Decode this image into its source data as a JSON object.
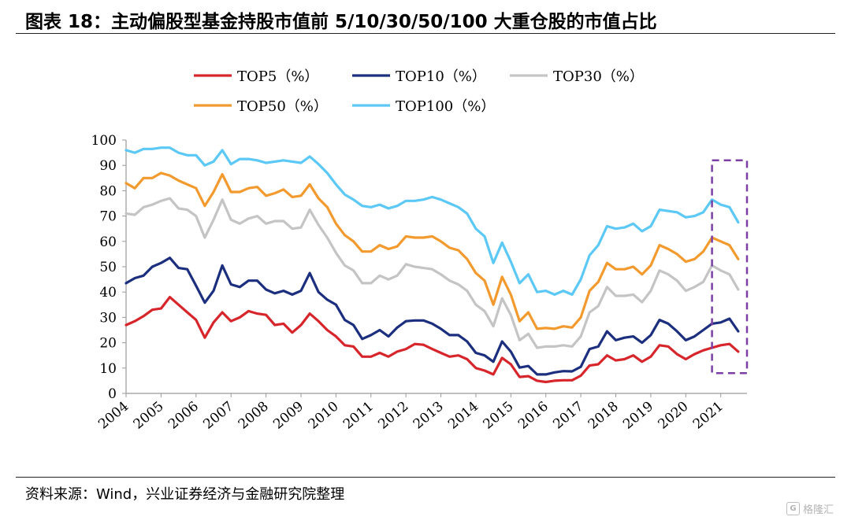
{
  "header": {
    "figure_title": "图表 18：主动偏股型基金持股市值前 5/10/30/50/100 大重仓股的市值占比"
  },
  "footer": {
    "source": "资料来源：Wind，兴业证券经济与金融研究院整理",
    "watermark": "格隆汇"
  },
  "chart_data": {
    "type": "line",
    "title": "",
    "xlabel": "",
    "ylabel": "",
    "ylim": [
      0,
      100
    ],
    "yticks": [
      0,
      10,
      20,
      30,
      40,
      50,
      60,
      70,
      80,
      90,
      100
    ],
    "xlim": [
      2004,
      2021.75
    ],
    "xticks": [
      "2004",
      "2005",
      "2006",
      "2007",
      "2008",
      "2009",
      "2010",
      "2011",
      "2012",
      "2013",
      "2014",
      "2015",
      "2016",
      "2017",
      "2018",
      "2019",
      "2020",
      "2021"
    ],
    "grid": false,
    "legend_position": "top-center",
    "x": [
      2004.0,
      2004.25,
      2004.5,
      2004.75,
      2005.0,
      2005.25,
      2005.5,
      2005.75,
      2006.0,
      2006.25,
      2006.5,
      2006.75,
      2007.0,
      2007.25,
      2007.5,
      2007.75,
      2008.0,
      2008.25,
      2008.5,
      2008.75,
      2009.0,
      2009.25,
      2009.5,
      2009.75,
      2010.0,
      2010.25,
      2010.5,
      2010.75,
      2011.0,
      2011.25,
      2011.5,
      2011.75,
      2012.0,
      2012.25,
      2012.5,
      2012.75,
      2013.0,
      2013.25,
      2013.5,
      2013.75,
      2014.0,
      2014.25,
      2014.5,
      2014.75,
      2015.0,
      2015.25,
      2015.5,
      2015.75,
      2016.0,
      2016.25,
      2016.5,
      2016.75,
      2017.0,
      2017.25,
      2017.5,
      2017.75,
      2018.0,
      2018.25,
      2018.5,
      2018.75,
      2019.0,
      2019.25,
      2019.5,
      2019.75,
      2020.0,
      2020.25,
      2020.5,
      2020.75,
      2021.0,
      2021.25,
      2021.5
    ],
    "series": [
      {
        "name": "TOP5（%）",
        "color": "#d7262b",
        "values": [
          27,
          28.5,
          30.5,
          33,
          33.5,
          38,
          35,
          32,
          29,
          22,
          28,
          32,
          28.5,
          30,
          32.5,
          31.5,
          31,
          27,
          27.5,
          24,
          27,
          31.5,
          28.5,
          25,
          22.5,
          19,
          18.5,
          14.5,
          14.5,
          16,
          14.5,
          16.5,
          17.5,
          19.5,
          19.2,
          17.5,
          16,
          14.5,
          15,
          13.5,
          10,
          9,
          7.5,
          14,
          11.5,
          6.5,
          6.8,
          5,
          4.5,
          5,
          5.2,
          5.2,
          7,
          11,
          11.5,
          15,
          13,
          13.5,
          15,
          12.5,
          14.5,
          19,
          18.5,
          15.5,
          13.5,
          15.5,
          17,
          18,
          19,
          19.5,
          16.5
        ]
      },
      {
        "name": "TOP10（%）",
        "color": "#1c2f7e",
        "values": [
          43.5,
          45.5,
          46.5,
          50,
          51.5,
          53.5,
          49.5,
          49,
          42.5,
          35.8,
          40.5,
          50.5,
          43,
          42,
          44.5,
          44.5,
          41,
          39.5,
          40.5,
          39,
          40.5,
          47.5,
          40,
          37,
          35,
          29,
          27,
          21.5,
          23,
          25,
          22.5,
          26,
          28.5,
          28.8,
          28.8,
          27.5,
          25.5,
          23,
          23,
          20.5,
          16,
          15,
          12.5,
          20.5,
          16.5,
          10.2,
          10.8,
          7.5,
          7.5,
          8.3,
          8.8,
          8.7,
          10.5,
          17.5,
          18.5,
          24.5,
          21,
          22,
          22.5,
          20,
          23,
          29,
          27.5,
          24.5,
          21,
          22.5,
          25,
          27.5,
          28,
          29.5,
          24.5
        ]
      },
      {
        "name": "TOP30（%）",
        "color": "#c4c4c4",
        "values": [
          71,
          70.5,
          73.5,
          74.5,
          76,
          77,
          73,
          72.5,
          70,
          61.5,
          68.5,
          76.5,
          68.5,
          67,
          69,
          70,
          67,
          68,
          68,
          65,
          65.5,
          72.5,
          66.5,
          61.5,
          55.5,
          50.5,
          48.5,
          43.5,
          43.5,
          46.5,
          45,
          46.5,
          51,
          50,
          49.5,
          49,
          47,
          44.5,
          43,
          40.5,
          35,
          32.5,
          26.5,
          37.5,
          31,
          21,
          23.5,
          18,
          18.5,
          18.5,
          19,
          18.5,
          22.5,
          32,
          34.5,
          42,
          38.5,
          38.5,
          39,
          36,
          40.5,
          48.5,
          47,
          44.5,
          40.5,
          42,
          44,
          50.5,
          48.5,
          47,
          41
        ]
      },
      {
        "name": "TOP50（%）",
        "color": "#f39a2f",
        "values": [
          83,
          81,
          85,
          85,
          87,
          86,
          84,
          82.5,
          81,
          74,
          79.5,
          86.5,
          79.5,
          79.5,
          81,
          81.5,
          78,
          79,
          80.5,
          77.5,
          78,
          82.5,
          77,
          73.5,
          67,
          62.5,
          60,
          56,
          56,
          58.5,
          57,
          58,
          62,
          61.5,
          61.5,
          62,
          60,
          57.5,
          56.5,
          53,
          47.5,
          44.5,
          35,
          46,
          39,
          28.5,
          32,
          25.5,
          25.8,
          25.5,
          26.5,
          26,
          30,
          40.5,
          44,
          51.5,
          49,
          49,
          50,
          47,
          50.5,
          58.5,
          57,
          55,
          52,
          53,
          56,
          61.5,
          60,
          58.5,
          53
        ]
      },
      {
        "name": "TOP100（%）",
        "color": "#5bc8f5",
        "values": [
          96,
          95,
          96.5,
          96.5,
          97,
          97,
          95,
          94,
          94,
          90,
          91.5,
          96,
          90.5,
          92.5,
          92.5,
          92,
          91,
          91.5,
          92,
          91.5,
          91,
          93.5,
          90.5,
          87,
          82.5,
          78.5,
          76.5,
          74,
          73.5,
          74.5,
          73,
          74,
          76,
          76,
          76.5,
          77.5,
          76.5,
          75,
          73.5,
          71,
          65,
          62,
          51.5,
          59.5,
          52,
          43.5,
          47,
          40,
          40.5,
          39,
          40.5,
          39,
          45,
          54.5,
          58.5,
          66,
          65,
          65.5,
          67,
          64,
          66,
          72.5,
          72,
          71.5,
          69.5,
          70,
          71.5,
          76.5,
          74.5,
          73.5,
          67.5
        ]
      }
    ],
    "annotations": [
      {
        "type": "dashed-box",
        "color": "#7b3fa6",
        "x_range": [
          2020.75,
          2021.75
        ],
        "y_range": [
          8,
          92
        ]
      }
    ]
  }
}
